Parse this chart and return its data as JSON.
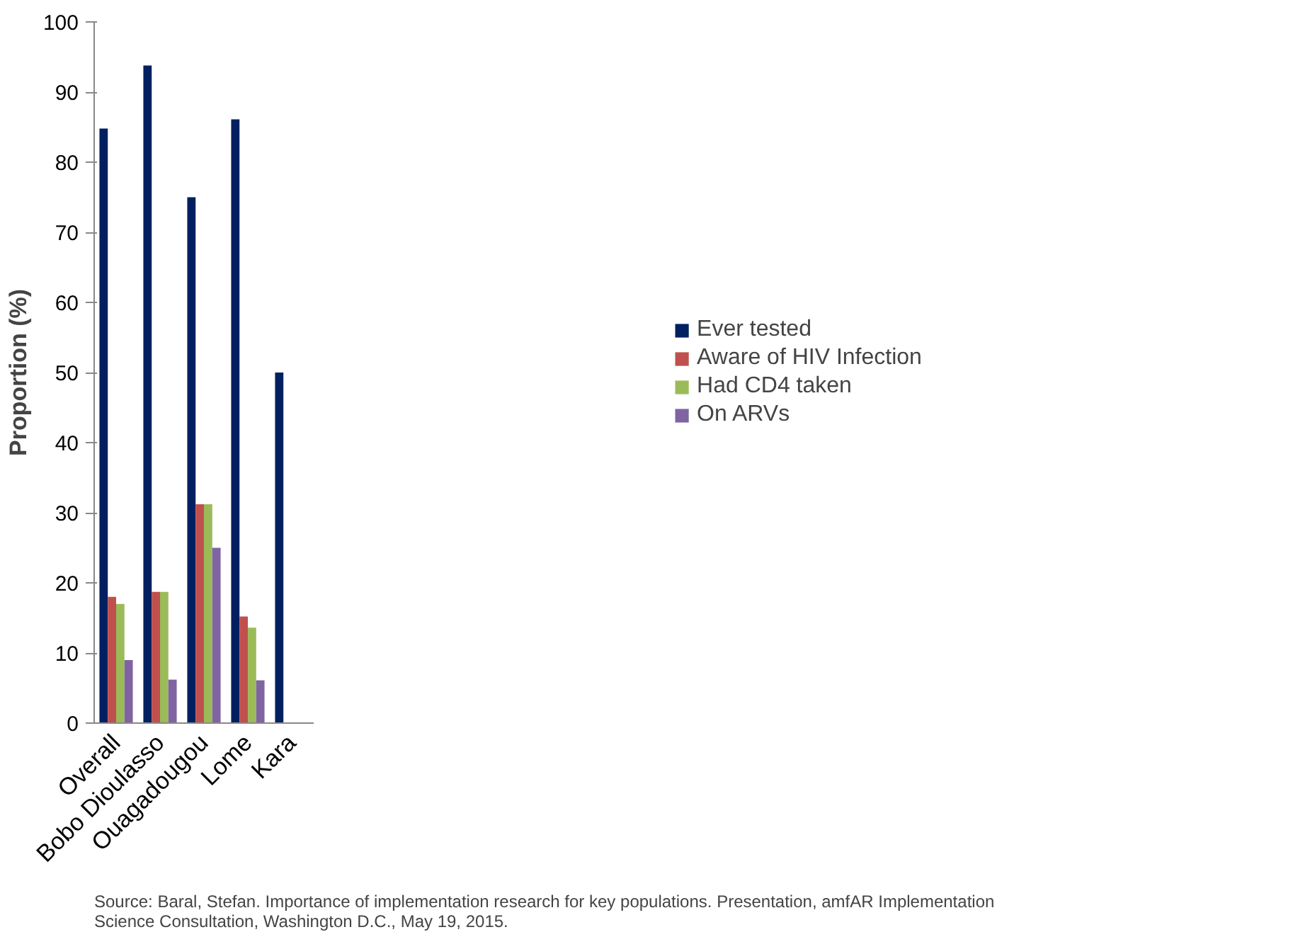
{
  "chart_data": {
    "type": "bar",
    "ylabel": "Proportion (%)",
    "categories": [
      "Overall",
      "Bobo Dioulasso",
      "Ouagadougou",
      "Lome",
      "Kara"
    ],
    "series": [
      {
        "name": "Ever tested",
        "color": "#002060",
        "values": [
          84.8,
          93.8,
          75,
          86.1,
          50
        ]
      },
      {
        "name": "Aware of HIV Infection",
        "color": "#c0504d",
        "values": [
          18,
          18.7,
          31.2,
          15.2,
          null
        ]
      },
      {
        "name": "Had CD4 taken",
        "color": "#9bbb59",
        "values": [
          17,
          18.7,
          31.2,
          13.6,
          null
        ]
      },
      {
        "name": "On ARVs",
        "color": "#8064a2",
        "values": [
          9,
          6.2,
          25,
          6.1,
          null
        ]
      }
    ],
    "ylim": [
      0,
      100
    ],
    "yticks": [
      0,
      10,
      20,
      30,
      40,
      50,
      60,
      70,
      80,
      90,
      100
    ],
    "grid": false,
    "legend": "right",
    "annotations": [
      "Source: Baral, Stefan. Importance of implementation research for key populations. Presentation, amfAR Implementation Science Consultation, Washington D.C., May 19, 2015."
    ]
  }
}
